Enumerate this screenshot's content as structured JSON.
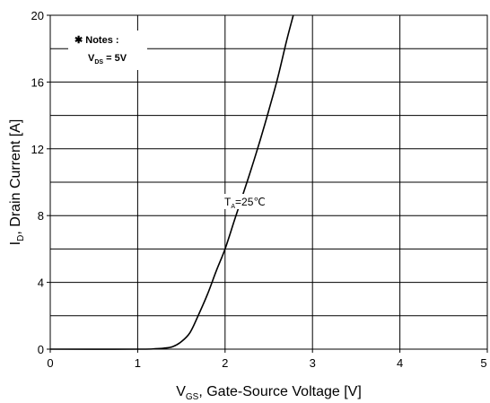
{
  "chart_data": {
    "type": "line",
    "title": "",
    "xlabel": {
      "main": "V",
      "sub": "GS",
      "rest": ", Gate-Source Voltage [V]"
    },
    "ylabel": {
      "main": "I",
      "sub": "D",
      "rest": ", Drain Current [A]"
    },
    "xlim": [
      0,
      5
    ],
    "ylim": [
      0,
      20
    ],
    "x_ticks": [
      "0",
      "1",
      "2",
      "3",
      "4",
      "5"
    ],
    "y_ticks": [
      "0",
      "4",
      "8",
      "12",
      "16",
      "20"
    ],
    "grid": true,
    "notes": {
      "line1": "✱ Notes :",
      "line2": {
        "main": "V",
        "sub": "DS",
        "rest": " = 5V"
      }
    },
    "annotation": {
      "main": "T",
      "sub": "A",
      "rest": "=25℃"
    },
    "series": [
      {
        "x": [
          0,
          1.0,
          1.2,
          1.3,
          1.4,
          1.5,
          1.6,
          1.7,
          1.8,
          1.9,
          2.0,
          2.1,
          2.2,
          2.3,
          2.4,
          2.5,
          2.6,
          2.7,
          2.78
        ],
        "y": [
          0,
          0,
          0.02,
          0.06,
          0.15,
          0.45,
          1.0,
          2.1,
          3.3,
          4.7,
          6.0,
          7.6,
          9.2,
          10.8,
          12.5,
          14.3,
          16.2,
          18.4,
          20
        ]
      }
    ]
  }
}
